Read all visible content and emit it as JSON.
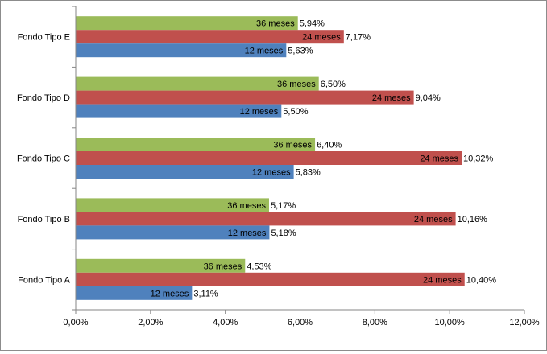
{
  "chart_data": {
    "type": "bar",
    "orientation": "horizontal",
    "categories": [
      "Fondo Tipo A",
      "Fondo Tipo B",
      "Fondo Tipo C",
      "Fondo Tipo D",
      "Fondo Tipo E"
    ],
    "series": [
      {
        "key": "s12",
        "color": "#4f81bd",
        "labels": [
          "12  meses",
          "12  meses",
          "12  meses",
          "12  meses",
          "12  meses"
        ],
        "values": [
          3.11,
          5.18,
          5.83,
          5.5,
          5.63
        ],
        "value_labels": [
          "3,11%",
          "5,18%",
          "5,83%",
          "5,50%",
          "5,63%"
        ]
      },
      {
        "key": "s24",
        "color": "#c0504d",
        "labels": [
          "24  meses",
          "24  meses",
          "24  meses",
          "24  meses",
          "24  meses"
        ],
        "values": [
          10.4,
          10.16,
          10.32,
          9.04,
          7.17
        ],
        "value_labels": [
          "10,40%",
          "10,16%",
          "10,32%",
          "9,04%",
          "7,17%"
        ]
      },
      {
        "key": "s36",
        "color": "#9bbb59",
        "labels": [
          "36  meses",
          "36  meses",
          "36  meses",
          "36  meses",
          "36  meses"
        ],
        "values": [
          4.53,
          5.17,
          6.4,
          6.5,
          5.94
        ],
        "value_labels": [
          "4,53%",
          "5,17%",
          "6,40%",
          "6,50%",
          "5,94%"
        ]
      }
    ],
    "xlim": [
      0,
      12
    ],
    "ticks": [
      0,
      2,
      4,
      6,
      8,
      10,
      12
    ],
    "tick_labels": [
      "0,00%",
      "2,00%",
      "4,00%",
      "6,00%",
      "8,00%",
      "10,00%",
      "12,00%"
    ],
    "grid": false,
    "legend": "none",
    "title": "",
    "xlabel": "",
    "ylabel": ""
  }
}
